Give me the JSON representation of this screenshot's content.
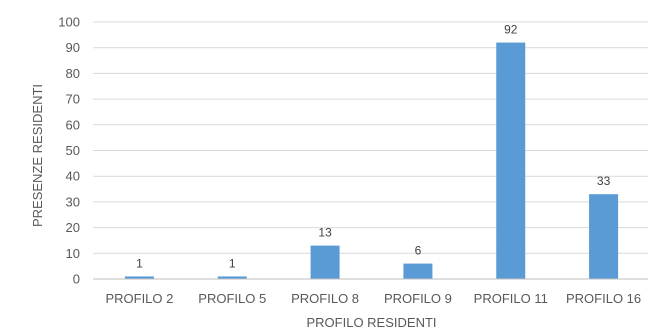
{
  "chart_data": {
    "type": "bar",
    "title": "",
    "xlabel": "PROFILO RESIDENTI",
    "ylabel": "PRESENZE RESIDENTI",
    "categories": [
      "PROFILO 2",
      "PROFILO 5",
      "PROFILO 8",
      "PROFILO 9",
      "PROFILO 11",
      "PROFILO 16"
    ],
    "values": [
      1,
      1,
      13,
      6,
      92,
      33
    ],
    "data_labels": [
      "1",
      "1",
      "13",
      "6",
      "92",
      "33"
    ],
    "ylim": [
      0,
      100
    ],
    "yticks": [
      "0",
      "10",
      "20",
      "30",
      "40",
      "50",
      "60",
      "70",
      "80",
      "90",
      "100"
    ],
    "grid": true,
    "legend": "none",
    "bar_color": "#5b9bd5"
  }
}
